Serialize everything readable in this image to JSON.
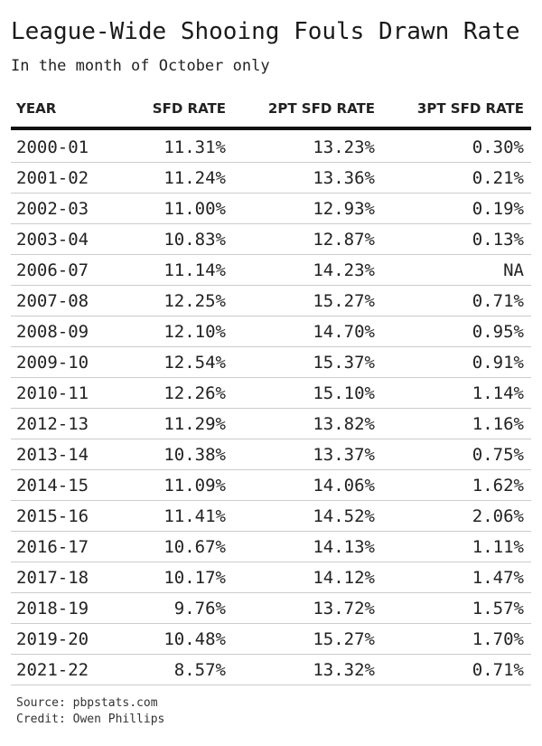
{
  "title": "League-Wide Shooing Fouls Drawn Rate",
  "subtitle": "In the month of October only",
  "footer": {
    "source": "Source: pbpstats.com",
    "credit": "Credit: Owen Phillips"
  },
  "chart_data": {
    "type": "table",
    "columns": [
      "YEAR",
      "SFD RATE",
      "2PT SFD RATE",
      "3PT SFD RATE"
    ],
    "rows": [
      [
        "2000-01",
        "11.31%",
        "13.23%",
        "0.30%"
      ],
      [
        "2001-02",
        "11.24%",
        "13.36%",
        "0.21%"
      ],
      [
        "2002-03",
        "11.00%",
        "12.93%",
        "0.19%"
      ],
      [
        "2003-04",
        "10.83%",
        "12.87%",
        "0.13%"
      ],
      [
        "2006-07",
        "11.14%",
        "14.23%",
        "NA"
      ],
      [
        "2007-08",
        "12.25%",
        "15.27%",
        "0.71%"
      ],
      [
        "2008-09",
        "12.10%",
        "14.70%",
        "0.95%"
      ],
      [
        "2009-10",
        "12.54%",
        "15.37%",
        "0.91%"
      ],
      [
        "2010-11",
        "12.26%",
        "15.10%",
        "1.14%"
      ],
      [
        "2012-13",
        "11.29%",
        "13.82%",
        "1.16%"
      ],
      [
        "2013-14",
        "10.38%",
        "13.37%",
        "0.75%"
      ],
      [
        "2014-15",
        "11.09%",
        "14.06%",
        "1.62%"
      ],
      [
        "2015-16",
        "11.41%",
        "14.52%",
        "2.06%"
      ],
      [
        "2016-17",
        "10.67%",
        "14.13%",
        "1.11%"
      ],
      [
        "2017-18",
        "10.17%",
        "14.12%",
        "1.47%"
      ],
      [
        "2018-19",
        "9.76%",
        "13.72%",
        "1.57%"
      ],
      [
        "2019-20",
        "10.48%",
        "15.27%",
        "1.70%"
      ],
      [
        "2021-22",
        "8.57%",
        "13.32%",
        "0.71%"
      ]
    ]
  }
}
